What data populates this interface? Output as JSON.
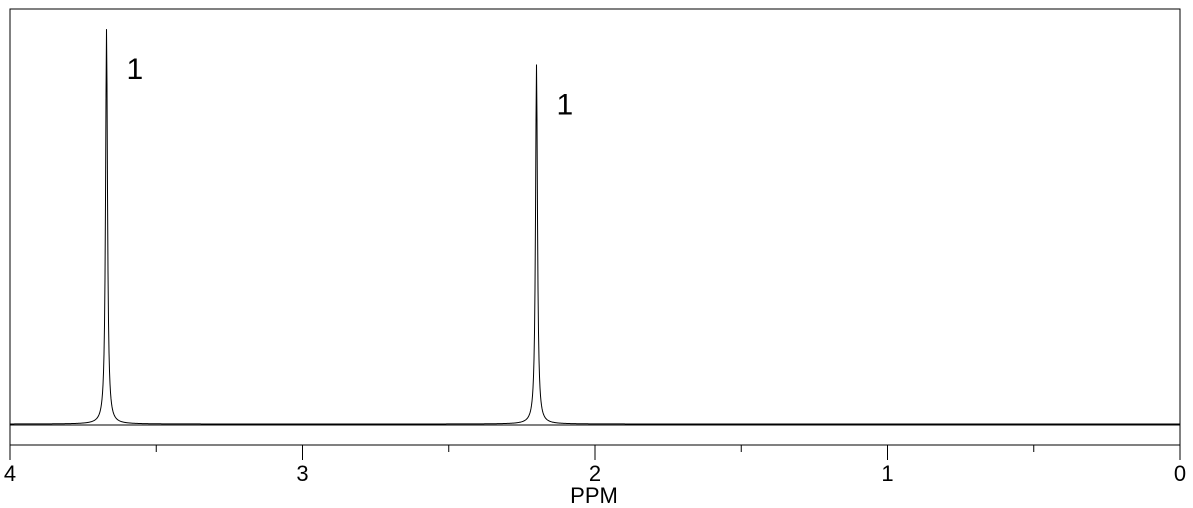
{
  "chart_data": {
    "type": "line",
    "title": "",
    "xlabel": "PPM",
    "ylabel": "",
    "xlim": [
      4,
      0
    ],
    "x_reversed": true,
    "ylim": [
      0,
      1
    ],
    "grid": false,
    "legend": "none",
    "x_ticks_major": [
      "4",
      "3",
      "2",
      "1",
      "0"
    ],
    "x_ticks_minor": [
      3.5,
      2.5,
      1.5,
      0.5
    ],
    "peaks": [
      {
        "ppm": 3.67,
        "height": 1.0,
        "label": "1"
      },
      {
        "ppm": 2.2,
        "height": 0.91,
        "label": "1"
      }
    ],
    "colors": {
      "line": "#000000",
      "frame": "#000000"
    }
  }
}
